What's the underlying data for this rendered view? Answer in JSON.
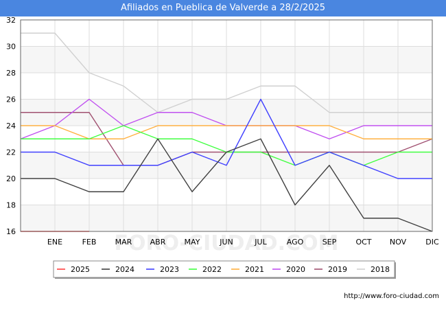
{
  "title": "Afiliados en Pueblica de Valverde a 28/2/2025",
  "source": "http://www.foro-ciudad.com",
  "watermark": "FORO-CIUDAD.COM",
  "chart_data": {
    "type": "line",
    "title": "Afiliados en Pueblica de Valverde a 28/2/2025",
    "x_positions": [
      "",
      "ENE",
      "FEB",
      "MAR",
      "ABR",
      "MAY",
      "JUN",
      "JUL",
      "AGO",
      "SEP",
      "OCT",
      "NOV",
      "DIC"
    ],
    "x_labels": [
      "ENE",
      "FEB",
      "MAR",
      "ABR",
      "MAY",
      "JUN",
      "JUL",
      "AGO",
      "SEP",
      "OCT",
      "NOV",
      "DIC"
    ],
    "ylim": [
      16,
      32
    ],
    "yticks": [
      16,
      18,
      20,
      22,
      24,
      26,
      28,
      30,
      32
    ],
    "grid": true,
    "legend_position": "bottom",
    "series": [
      {
        "name": "2025",
        "color": "#ff4040",
        "values": [
          16,
          16,
          16
        ]
      },
      {
        "name": "2024",
        "color": "#404040",
        "values": [
          20,
          20,
          19,
          19,
          23,
          19,
          22,
          23,
          18,
          21,
          17,
          17,
          16
        ]
      },
      {
        "name": "2023",
        "color": "#4040ff",
        "values": [
          22,
          22,
          21,
          21,
          21,
          22,
          21,
          26,
          21,
          22,
          21,
          20,
          20
        ]
      },
      {
        "name": "2022",
        "color": "#40ff40",
        "values": [
          23,
          23,
          23,
          24,
          23,
          23,
          22,
          22,
          21,
          22,
          21,
          22,
          22
        ]
      },
      {
        "name": "2021",
        "color": "#ffb040",
        "values": [
          24,
          24,
          23,
          23,
          24,
          24,
          24,
          24,
          24,
          24,
          23,
          23,
          23
        ]
      },
      {
        "name": "2020",
        "color": "#c050f0",
        "values": [
          23,
          24,
          26,
          24,
          25,
          25,
          24,
          24,
          24,
          23,
          24,
          24,
          24
        ]
      },
      {
        "name": "2019",
        "color": "#a05070",
        "values": [
          25,
          25,
          25,
          21,
          21,
          22,
          22,
          22,
          22,
          22,
          22,
          22,
          23
        ]
      },
      {
        "name": "2018",
        "color": "#d0d0d0",
        "values": [
          31,
          31,
          28,
          27,
          25,
          26,
          26,
          27,
          27,
          25,
          25,
          25,
          25
        ]
      }
    ]
  }
}
